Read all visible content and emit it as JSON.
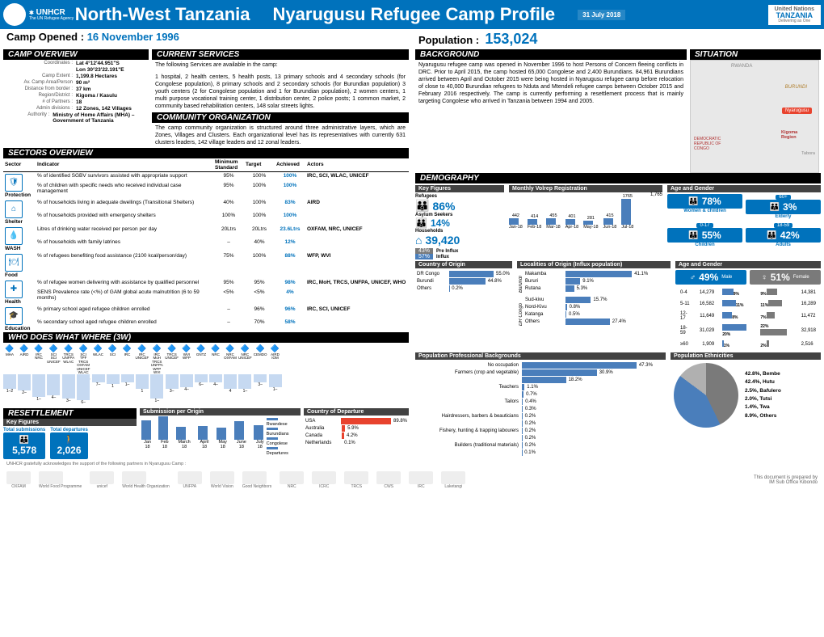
{
  "header": {
    "unhcr": "UNHCR",
    "agency_sub": "The UN Refugee Agency",
    "title1": "North-West Tanzania",
    "title2": "Nyarugusu Refugee Camp Profile",
    "date": "31 July 2018",
    "un_line1": "United Nations",
    "un_line2": "TANZANIA",
    "un_line3": "Delivering as One"
  },
  "subheader": {
    "opened_lbl": "Camp Opened :",
    "opened_val": "16 November 1996",
    "pop_lbl": "Population :",
    "pop_val": "153,024"
  },
  "sections": {
    "overview": "CAMP OVERVIEW",
    "services": "CURRENT SERVICES",
    "community": "COMMUNITY ORGANIZATION",
    "sectors": "SECTORS OVERVIEW",
    "w3": "WHO DOES WHAT WHERE (3W)",
    "resettle": "RESETTLEMENT",
    "background": "BACKGROUND",
    "situation": "SITUATION",
    "demography": "DEMOGRAPHY"
  },
  "overview": [
    {
      "l": "Coordinates :",
      "v": "Lat 4°12'44.951\"S"
    },
    {
      "l": "",
      "v": "Lon 30°23'22.191\"E"
    },
    {
      "l": "Camp Extent :",
      "v": "1,199.8 Hectares"
    },
    {
      "l": "Av. Camp Area/Person",
      "v": "90 m²"
    },
    {
      "l": "Distance from border :",
      "v": "37 km"
    },
    {
      "l": "Region/District :",
      "v": "Kigoma / Kasulu"
    },
    {
      "l": "# of Partners :",
      "v": "18"
    },
    {
      "l": "Admin divisions :",
      "v": "12 Zones, 142 Villages"
    },
    {
      "l": "Authority :",
      "v": "Ministry of Home Affairs (MHA) – Government of Tanzania"
    }
  ],
  "services_intro": "The following Services are available in the camp:",
  "services_text": "1 hospital, 2 health centers, 5 health posts, 13 primary schools and 4 secondary schools (for Congolese population), 8 primary schools and 2 secondary schools (for Burundian population) 3 youth centers (2 for Congolese population and 1 for Burundian population), 2 women centers, 1 multi purpose vocational training center, 1 distribution center, 2 police posts; 1 common market, 2 community based rehabilitation centers, 148 solar streets lights.",
  "community_text": "The camp community organization is structured around three administrative layers, which are Zones, Villages and Clusters. Each organizational level has its representatives with currently 631 clusters leaders, 142 village leaders and 12 zonal leaders.",
  "sectors_headers": [
    "Sector",
    "Indicator",
    "Minimum Standard",
    "Target",
    "Achieved",
    "Actors"
  ],
  "sectors": [
    {
      "name": "Protection",
      "icon": "🛡",
      "rows": [
        {
          "ind": "% of identified SGBV survivors assisted with appropriate support",
          "ms": "95%",
          "t": "100%",
          "a": "100%"
        },
        {
          "ind": "% of children with specific needs who received individual case management",
          "ms": "95%",
          "t": "100%",
          "a": "100%"
        }
      ],
      "actors": "IRC, SCI, WLAC, UNICEF"
    },
    {
      "name": "Shelter",
      "icon": "⌂",
      "rows": [
        {
          "ind": "% of households living in adequate dwellings (Transitional Shelters)",
          "ms": "40%",
          "t": "100%",
          "a": "83%"
        },
        {
          "ind": "% of households provided with emergency shelters",
          "ms": "100%",
          "t": "100%",
          "a": "100%"
        }
      ],
      "actors": "AIRD"
    },
    {
      "name": "WASH",
      "icon": "💧",
      "rows": [
        {
          "ind": "Litres of drinking water received per person per day",
          "ms": "20Ltrs",
          "t": "20Ltrs",
          "a": "23.6Ltrs"
        },
        {
          "ind": "% of households with family latrines",
          "ms": "–",
          "t": "40%",
          "a": "12%"
        }
      ],
      "actors": "OXFAM, NRC, UNICEF"
    },
    {
      "name": "Food",
      "icon": "🍽",
      "rows": [
        {
          "ind": "% of refugees benefiting food assistance (2100 kcal/person/day)",
          "ms": "75%",
          "t": "100%",
          "a": "88%"
        }
      ],
      "actors": "WFP, WVI"
    },
    {
      "name": "Health",
      "icon": "✚",
      "rows": [
        {
          "ind": "% of refugee women delivering with assistance by qualified personnel",
          "ms": "95%",
          "t": "95%",
          "a": "98%"
        },
        {
          "ind": "SENS Prevalence rate (<%) of GAM global acute malnutrition (6 to 59 months)",
          "ms": "<5%",
          "t": "<5%",
          "a": "4%"
        }
      ],
      "actors": "IRC, MoH, TRCS, UNFPA, UNICEF, WHO"
    },
    {
      "name": "Education",
      "icon": "🎓",
      "rows": [
        {
          "ind": "% primary school aged refugee children enrolled",
          "ms": "–",
          "t": "96%",
          "a": "96%"
        },
        {
          "ind": "% secondary school aged refugee children enrolled",
          "ms": "–",
          "t": "70%",
          "a": "58%"
        }
      ],
      "actors": "IRC, SCI, UNICEF"
    }
  ],
  "w3": {
    "cols": [
      {
        "org": "MHA",
        "bar": 18
      },
      {
        "org": "AIRD",
        "bar": 20
      },
      {
        "org": "IRC NRC",
        "bar": 28
      },
      {
        "org": "SCI SCI UNICEF",
        "bar": 26
      },
      {
        "org": "TRCS UNFPA WLAC",
        "bar": 30
      },
      {
        "org": "SCI TPF TRCS OXFAM UNICEF WLAC IRC UNICEF",
        "bar": 32
      },
      {
        "org": "WLAC",
        "bar": 10
      },
      {
        "org": "SCI",
        "bar": 12
      },
      {
        "org": "IRC",
        "bar": 10
      },
      {
        "org": "IRC UNICEF",
        "bar": 18
      },
      {
        "org": "IRC MoH TRCS UNFPA WFP WVI",
        "bar": 30
      },
      {
        "org": "TRCS UNICEF",
        "bar": 18
      },
      {
        "org": "WVI WFP",
        "bar": 16
      },
      {
        "org": "GNTZ",
        "bar": 10
      },
      {
        "org": "NRC",
        "bar": 10
      },
      {
        "org": "NRC OXFAM",
        "bar": 18
      },
      {
        "org": "NRC UNICEF",
        "bar": 18
      },
      {
        "org": "CEMDO",
        "bar": 10
      },
      {
        "org": "AIRD IOM",
        "bar": 16
      }
    ],
    "footer": [
      "1–2",
      "2–",
      "1–",
      "4–",
      "3–",
      "6–",
      "7–",
      "1",
      "1–",
      "1",
      "1–",
      "3–",
      "4–",
      "6–",
      "4–",
      "4",
      "1–",
      "3–",
      "1–",
      "1–",
      "2"
    ]
  },
  "resettle": {
    "sub_origin": "Submission per Origin",
    "sub_departure": "Country of Departure",
    "kf_title": "Key Figures",
    "total_sub_lbl": "Total submissions",
    "total_sub_val": "5,578",
    "total_dep_lbl": "Total departures",
    "total_dep_val": "2,026",
    "origin_legend": [
      "Rwandese",
      "Burundians",
      "Congolese",
      "Departures"
    ],
    "origin_months": [
      "Jan 18",
      "Feb 18",
      "March 18",
      "April 18",
      "May 18",
      "June 18",
      "July 18"
    ],
    "countries": [
      {
        "c": "USA",
        "p": "89.8%",
        "w": 89.8
      },
      {
        "c": "Australia",
        "p": "5.9%",
        "w": 5.9
      },
      {
        "c": "Canada",
        "p": "4.2%",
        "w": 4.2
      },
      {
        "c": "Netherlands",
        "p": "0.1%",
        "w": 0.1
      }
    ]
  },
  "background_text": "Nyarugusu refugee camp was opened in November 1996 to host Persons of Concern fleeing conflicts in DRC. Prior to April 2015, the camp hosted 65,000 Congolese and 2,400 Burundians. 84,961 Burundians arrived between April and October 2015 were being hosted in Nyarugusu refugee camp before relocation of close to 40,000 Burundian refugees to Nduta and Mtendeli refugee camps between October 2015 and February 2016 respectively. The camp is currently performing a resettlement process that is mainly targeting Congolese who arrived in Tanzania between 1994 and 2005.",
  "map": {
    "labels": [
      "RWANDA",
      "BURUNDI",
      "DEMOCRATIC REPUBLIC OF CONGO",
      "Kigoma Region",
      "Tabora"
    ],
    "marker": "Nyarugusu"
  },
  "demography": {
    "sub1": "Key Figures",
    "sub2": "Monthly Volrep Registration",
    "sub3": "Age and Gender",
    "refugees_lbl": "Refugees",
    "refugees_pct": "86%",
    "asylum_lbl": "Asylum Seekers",
    "asylum_pct": "14%",
    "households_lbl": "Households",
    "households_val": "39,420",
    "preinflux_lbl": "Pre Influx",
    "preinflux_pct": "43%",
    "influx_lbl": "Influx",
    "influx_pct": "57%",
    "volrep_peak": "1,765",
    "volrep_months": [
      "Jan-18",
      "Feb-18",
      "Mar-18",
      "Apr-18",
      "May-18",
      "Jun-18",
      "Jul-18"
    ],
    "volrep_vals": [
      442,
      414,
      455,
      401,
      281,
      415,
      1765
    ],
    "ag_boxes": [
      {
        "badge": "60+",
        "pct": "3%",
        "cap": "Elderly"
      },
      {
        "badge": "",
        "pct": "78%",
        "cap": "Women & children"
      },
      {
        "badge": "0-17",
        "pct": "55%",
        "cap": "Children"
      },
      {
        "badge": "18-59",
        "pct": "42%",
        "cap": "Adults"
      }
    ],
    "country_title": "Country of Origin",
    "countries": [
      {
        "c": "DR Congo",
        "p": "55.0%"
      },
      {
        "c": "Burundi",
        "p": "44.8%"
      },
      {
        "c": "Others",
        "p": "0.2%"
      }
    ],
    "loc_title": "Localities of Origin (Influx population)",
    "loc_bdi_lbl": "Burundi",
    "loc_bdi": [
      {
        "n": "Makamba",
        "p": "41.1%",
        "w": 41.1
      },
      {
        "n": "Bururi",
        "p": "9.1%",
        "w": 9.1
      },
      {
        "n": "Rutana",
        "p": "5.3%",
        "w": 5.3
      }
    ],
    "loc_drc_lbl": "DR Congo",
    "loc_drc": [
      {
        "n": "Sud-kivu",
        "p": "15.7%",
        "w": 15.7
      },
      {
        "n": "Nord-Kivu",
        "p": "0.8%",
        "w": 0.8
      },
      {
        "n": "Katanga",
        "p": "0.5%",
        "w": 0.5
      },
      {
        "n": "Others",
        "p": "27.4%",
        "w": 27.4
      }
    ],
    "ag2_title": "Age and Gender",
    "male_pct": "49%",
    "male_lbl": "Male",
    "female_pct": "51%",
    "female_lbl": "Female",
    "age_rows": [
      {
        "g": "0-4",
        "m": "14,279",
        "mp": "9%",
        "fp": "9%",
        "f": "14,381"
      },
      {
        "g": "5-11",
        "m": "16,582",
        "mp": "11%",
        "fp": "11%",
        "f": "16,289"
      },
      {
        "g": "12-17",
        "m": "11,649",
        "mp": "8%",
        "fp": "7%",
        "f": "11,472"
      },
      {
        "g": "18-59",
        "m": "31,029",
        "mp": "20%",
        "fp": "22%",
        "f": "32,918"
      },
      {
        "g": "≥60",
        "m": "1,909",
        "mp": "1%",
        "fp": "2%",
        "f": "2,516"
      }
    ],
    "prof_title": "Population Professional Backgrounds",
    "prof": [
      {
        "n": "No occupation",
        "p": "47.3%",
        "w": 47.3
      },
      {
        "n": "Farmers (crop and vegetable)",
        "p": "30.9%",
        "w": 30.9
      },
      {
        "n": "",
        "p": "18.2%",
        "w": 18.2
      },
      {
        "n": "Teachers",
        "p": "1.1%",
        "w": 1.1
      },
      {
        "n": "",
        "p": "0.7%",
        "w": 0.7
      },
      {
        "n": "Tailors",
        "p": "0.4%",
        "w": 0.4
      },
      {
        "n": "",
        "p": "0.3%",
        "w": 0.3
      },
      {
        "n": "Hairdressers, barbers & beauticians",
        "p": "0.2%",
        "w": 0.2
      },
      {
        "n": "",
        "p": "0.2%",
        "w": 0.2
      },
      {
        "n": "Fishery, hunting & trapping labourers",
        "p": "0.2%",
        "w": 0.2
      },
      {
        "n": "",
        "p": "0.2%",
        "w": 0.2
      },
      {
        "n": "Builders (traditional materials)",
        "p": "0.2%",
        "w": 0.2
      },
      {
        "n": "",
        "p": "0.1%",
        "w": 0.1
      }
    ],
    "eth_title": "Population Ethnicities",
    "eth": [
      {
        "n": "42.8%, Bembe",
        "c": "#7a7a7a"
      },
      {
        "n": "42.4%, Hutu",
        "c": "#4a7ebb"
      },
      {
        "n": "2.5%, Bafulero",
        "c": "#a0a0a0"
      },
      {
        "n": "2.0%, Tutsi",
        "c": "#6089c4"
      },
      {
        "n": "1.4%, Twa",
        "c": "#b8b8b8"
      },
      {
        "n": "8.9%, Others",
        "c": "#d0d0d0"
      }
    ]
  },
  "ack": "UNHCR gratefully acknowledges the support of the following partners in Nyarugusu Camp :",
  "prepared": "This document is prepared by",
  "office": "IM Sub Office Kibondo",
  "partners": [
    "OXFAM",
    "World Food Programme",
    "unicef",
    "World Health Organization",
    "UNFPA",
    "World Vision",
    "Good Neighbors",
    "NRC",
    "ICRC",
    "TRCS",
    "CWS",
    "IRC",
    "Laketangi"
  ]
}
